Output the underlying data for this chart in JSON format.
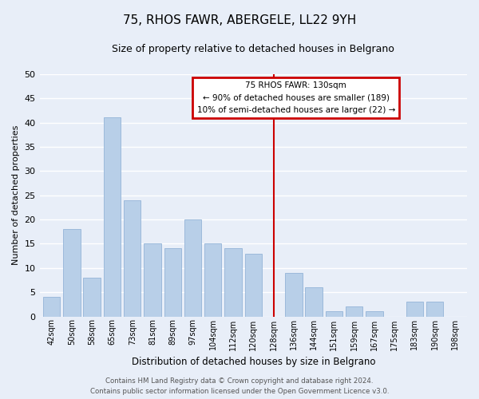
{
  "title": "75, RHOS FAWR, ABERGELE, LL22 9YH",
  "subtitle": "Size of property relative to detached houses in Belgrano",
  "xlabel": "Distribution of detached houses by size in Belgrano",
  "ylabel": "Number of detached properties",
  "bar_labels": [
    "42sqm",
    "50sqm",
    "58sqm",
    "65sqm",
    "73sqm",
    "81sqm",
    "89sqm",
    "97sqm",
    "104sqm",
    "112sqm",
    "120sqm",
    "128sqm",
    "136sqm",
    "144sqm",
    "151sqm",
    "159sqm",
    "167sqm",
    "175sqm",
    "183sqm",
    "190sqm",
    "198sqm"
  ],
  "bar_values": [
    4,
    18,
    8,
    41,
    24,
    15,
    14,
    20,
    15,
    14,
    13,
    0,
    9,
    6,
    1,
    2,
    1,
    0,
    3,
    3,
    0
  ],
  "bar_color": "#b8cfe8",
  "bar_edge_color": "#94b4d8",
  "ylim": [
    0,
    50
  ],
  "yticks": [
    0,
    5,
    10,
    15,
    20,
    25,
    30,
    35,
    40,
    45,
    50
  ],
  "annotation_title": "75 RHOS FAWR: 130sqm",
  "annotation_line1": "← 90% of detached houses are smaller (189)",
  "annotation_line2": "10% of semi-detached houses are larger (22) →",
  "footer_line1": "Contains HM Land Registry data © Crown copyright and database right 2024.",
  "footer_line2": "Contains public sector information licensed under the Open Government Licence v3.0.",
  "bg_color": "#e8eef8",
  "grid_color": "#ffffff",
  "title_fontsize": 11,
  "subtitle_fontsize": 9,
  "annotation_box_color": "#ffffff",
  "annotation_box_edge": "#cc0000",
  "red_line_color": "#cc0000",
  "red_line_x": 11
}
